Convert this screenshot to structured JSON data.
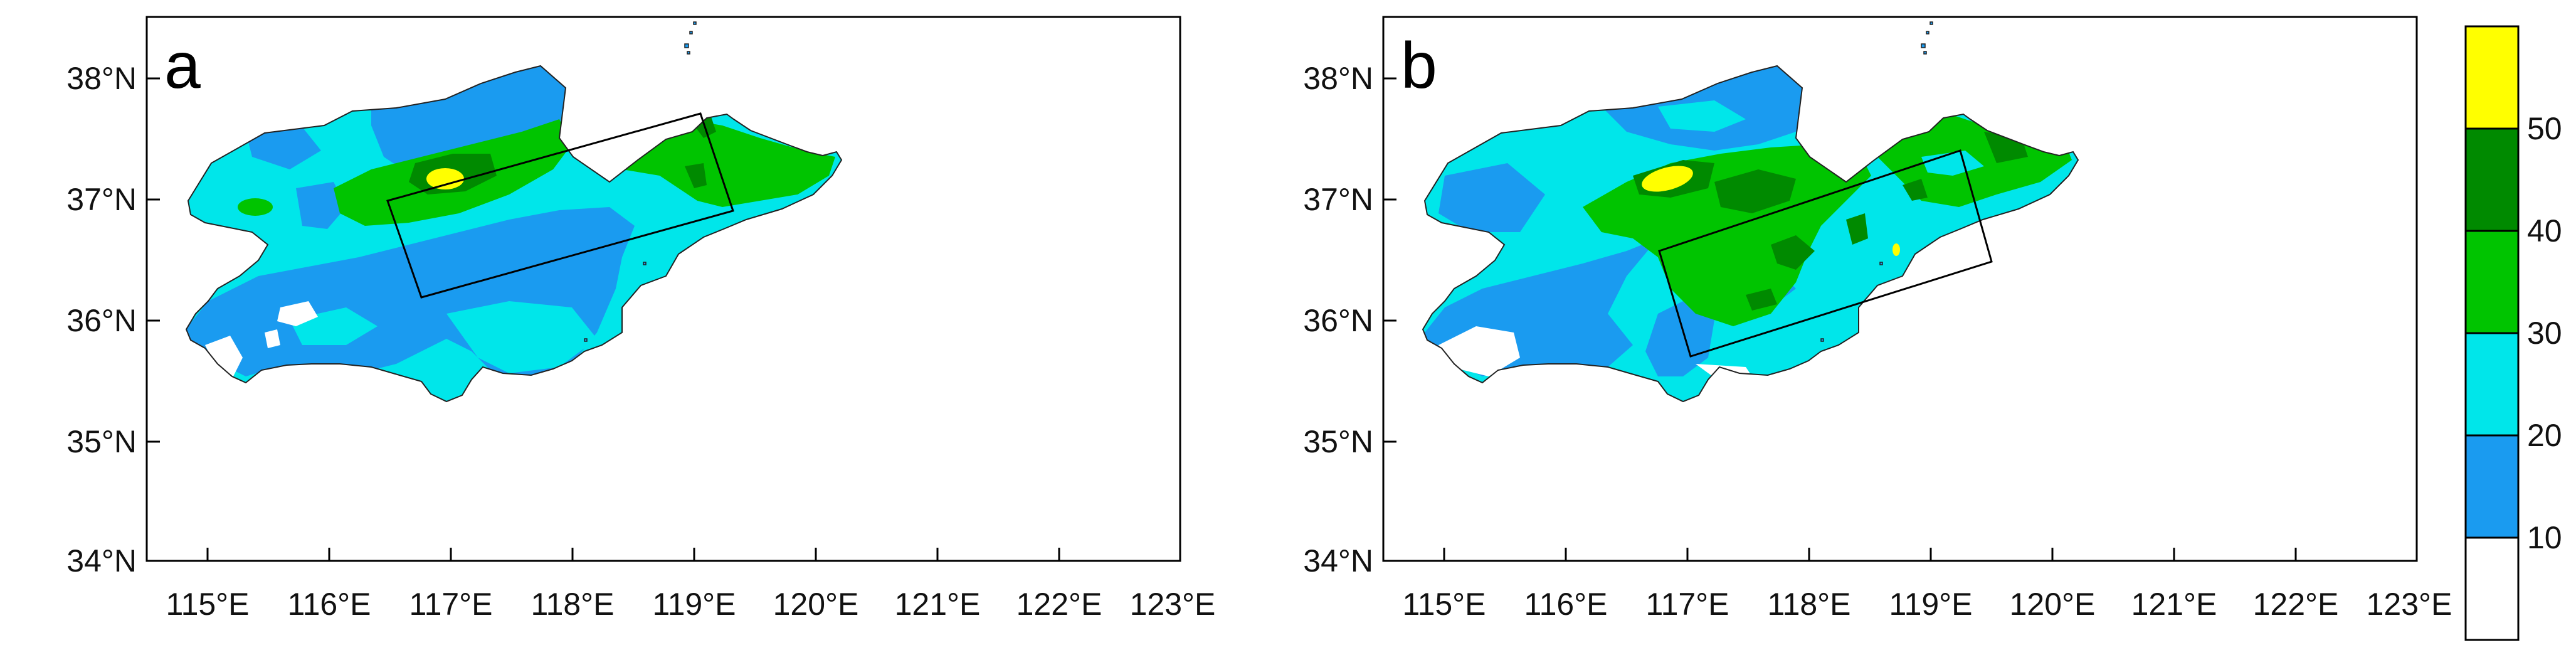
{
  "panels": [
    {
      "letter": "a",
      "lat_labels": [
        "38°N",
        "37°N",
        "36°N",
        "35°N",
        "34°N"
      ],
      "lon_labels": [
        "115°E",
        "116°E",
        "117°E",
        "118°E",
        "119°E",
        "120°E",
        "121°E",
        "122°E",
        "123°E"
      ]
    },
    {
      "letter": "b",
      "lat_labels": [
        "38°N",
        "37°N",
        "36°N",
        "35°N",
        "34°N"
      ],
      "lon_labels": [
        "115°E",
        "116°E",
        "117°E",
        "118°E",
        "119°E",
        "120°E",
        "121°E",
        "122°E",
        "123°E"
      ]
    }
  ],
  "map": {
    "lon_range": [
      114.5,
      123.0
    ],
    "lat_range": [
      34.0,
      38.5
    ]
  },
  "colorbar": {
    "labels": [
      "10",
      "20",
      "30",
      "40",
      "50"
    ],
    "colors": [
      "#ffffff",
      "#1a9bf0",
      "#00e6ea",
      "#00c400",
      "#008a00",
      "#ffff00"
    ]
  },
  "palette": {
    "white": "#ffffff",
    "blue": "#1a9bf0",
    "cyan": "#00e6ea",
    "green": "#00c400",
    "darkgreen": "#008a00",
    "yellow": "#ffff00"
  }
}
